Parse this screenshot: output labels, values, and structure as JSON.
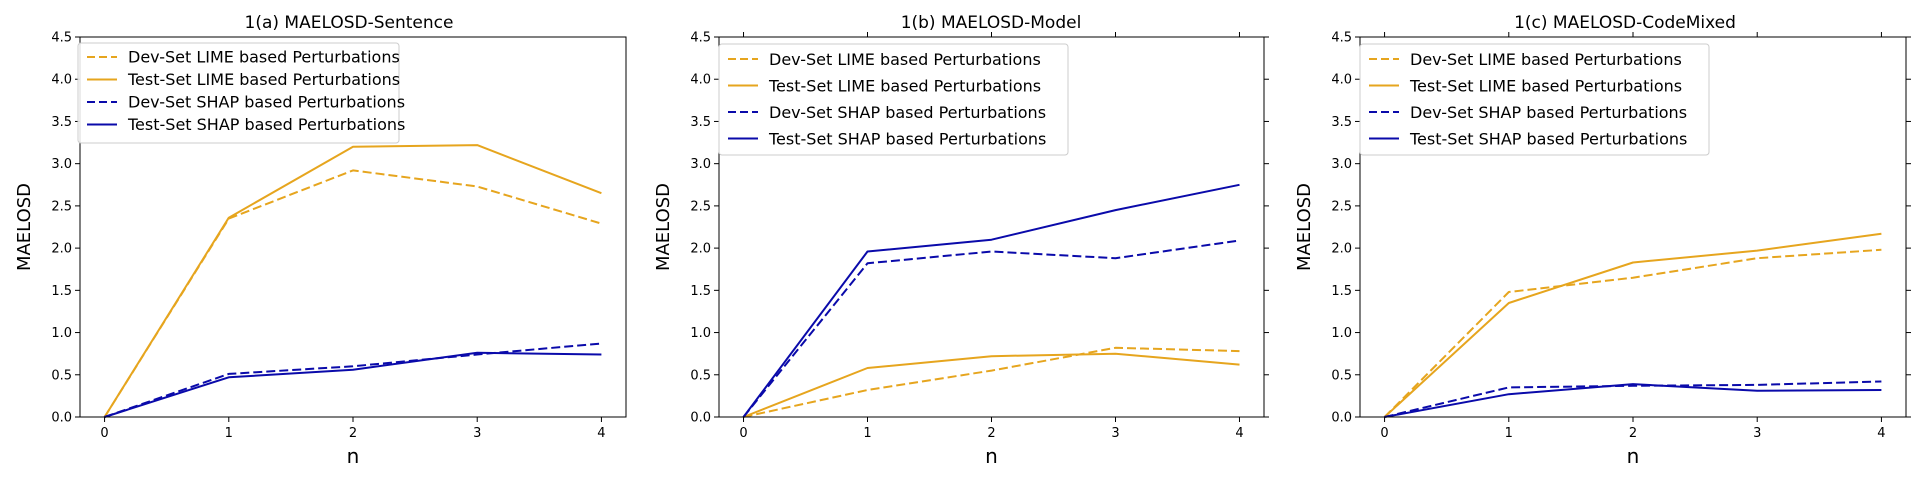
{
  "figure": {
    "colors": {
      "lime": "#E6A51E",
      "shap": "#0A0AAA",
      "axis": "#000000"
    }
  },
  "chart_data": [
    {
      "type": "line",
      "title": "1(a) MAELOSD-Sentence",
      "xlabel": "n",
      "ylabel": "MAELOSD",
      "x": [
        0,
        1,
        2,
        3,
        4
      ],
      "xticks": [
        "0",
        "1",
        "2",
        "3",
        "4"
      ],
      "yticks": [
        "0.0",
        "0.5",
        "1.0",
        "1.5",
        "2.0",
        "2.5",
        "3.0",
        "3.5",
        "4.0",
        "4.5"
      ],
      "ylim": [
        0,
        4.5
      ],
      "legend_position": "top-left",
      "series": [
        {
          "name": "Dev-Set LIME based Perturbations",
          "style": "dashed",
          "color": "lime",
          "values": [
            0.0,
            2.35,
            2.92,
            2.73,
            2.29
          ]
        },
        {
          "name": "Test-Set LIME based Perturbations",
          "style": "solid",
          "color": "lime",
          "values": [
            0.0,
            2.36,
            3.2,
            3.22,
            2.65
          ]
        },
        {
          "name": "Dev-Set SHAP based Perturbations",
          "style": "dashed",
          "color": "shap",
          "values": [
            0.0,
            0.51,
            0.6,
            0.74,
            0.87
          ]
        },
        {
          "name": "Test-Set SHAP based Perturbations",
          "style": "solid",
          "color": "shap",
          "values": [
            0.0,
            0.47,
            0.56,
            0.76,
            0.74
          ]
        }
      ]
    },
    {
      "type": "line",
      "title": "1(b) MAELOSD-Model",
      "xlabel": "n",
      "ylabel": "MAELOSD",
      "x": [
        0,
        1,
        2,
        3,
        4
      ],
      "xticks": [
        "0",
        "1",
        "2",
        "3",
        "4"
      ],
      "yticks": [
        "0.0",
        "0.5",
        "1.0",
        "1.5",
        "2.0",
        "2.5",
        "3.0",
        "3.5",
        "4.0",
        "4.5"
      ],
      "ylim": [
        0,
        4.5
      ],
      "legend_position": "top-left",
      "series": [
        {
          "name": "Dev-Set LIME based Perturbations",
          "style": "dashed",
          "color": "lime",
          "values": [
            0.0,
            0.32,
            0.55,
            0.82,
            0.78
          ]
        },
        {
          "name": "Test-Set LIME based Perturbations",
          "style": "solid",
          "color": "lime",
          "values": [
            0.0,
            0.58,
            0.72,
            0.75,
            0.62
          ]
        },
        {
          "name": "Dev-Set SHAP based Perturbations",
          "style": "dashed",
          "color": "shap",
          "values": [
            0.0,
            1.82,
            1.96,
            1.88,
            2.09
          ]
        },
        {
          "name": "Test-Set SHAP based Perturbations",
          "style": "solid",
          "color": "shap",
          "values": [
            0.0,
            1.96,
            2.1,
            2.45,
            2.75
          ]
        }
      ]
    },
    {
      "type": "line",
      "title": "1(c) MAELOSD-CodeMixed",
      "xlabel": "n",
      "ylabel": "MAELOSD",
      "x": [
        0,
        1,
        2,
        3,
        4
      ],
      "xticks": [
        "0",
        "1",
        "2",
        "3",
        "4"
      ],
      "yticks": [
        "0.0",
        "0.5",
        "1.0",
        "1.5",
        "2.0",
        "2.5",
        "3.0",
        "3.5",
        "4.0",
        "4.5"
      ],
      "ylim": [
        0,
        4.5
      ],
      "legend_position": "top-left",
      "series": [
        {
          "name": "Dev-Set LIME based Perturbations",
          "style": "dashed",
          "color": "lime",
          "values": [
            0.0,
            1.48,
            1.65,
            1.88,
            1.98
          ]
        },
        {
          "name": "Test-Set LIME based Perturbations",
          "style": "solid",
          "color": "lime",
          "values": [
            0.0,
            1.35,
            1.83,
            1.97,
            2.17
          ]
        },
        {
          "name": "Dev-Set SHAP based Perturbations",
          "style": "dashed",
          "color": "shap",
          "values": [
            0.0,
            0.35,
            0.37,
            0.38,
            0.42
          ]
        },
        {
          "name": "Test-Set SHAP based Perturbations",
          "style": "solid",
          "color": "shap",
          "values": [
            0.0,
            0.27,
            0.39,
            0.31,
            0.32
          ]
        }
      ]
    }
  ]
}
